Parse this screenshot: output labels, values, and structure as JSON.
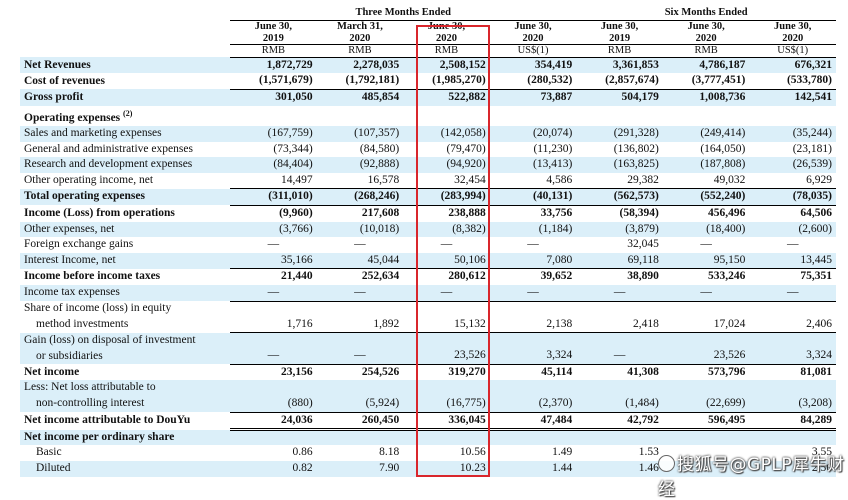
{
  "header": {
    "group_three": "Three Months Ended",
    "group_six": "Six Months Ended",
    "columns": [
      {
        "line1": "June 30,",
        "line2": "2019",
        "currency": "RMB"
      },
      {
        "line1": "March 31,",
        "line2": "2020",
        "currency": "RMB"
      },
      {
        "line1": "June 30,",
        "line2": "2020",
        "currency": "RMB"
      },
      {
        "line1": "June 30,",
        "line2": "2020",
        "currency": "US$(1)"
      },
      {
        "line1": "June 30,",
        "line2": "2019",
        "currency": "RMB"
      },
      {
        "line1": "June 30,",
        "line2": "2020",
        "currency": "RMB"
      },
      {
        "line1": "June 30,",
        "line2": "2020",
        "currency": "US$(1)"
      }
    ]
  },
  "rows": [
    {
      "label": "Net Revenues",
      "values": [
        "1,872,729",
        "2,278,035",
        "2,508,152",
        "354,419",
        "3,361,853",
        "4,786,187",
        "676,321"
      ]
    },
    {
      "label": "Cost of revenues",
      "values": [
        "(1,571,679)",
        "(1,792,181)",
        "(1,985,270)",
        "(280,532)",
        "(2,857,674)",
        "(3,777,451)",
        "(533,780)"
      ]
    },
    {
      "label": "Gross profit",
      "values": [
        "301,050",
        "485,854",
        "522,882",
        "73,887",
        "504,179",
        "1,008,736",
        "142,541"
      ]
    },
    {
      "label": "Operating expenses",
      "sup": "(2)"
    },
    {
      "label": "Sales and marketing expenses",
      "values": [
        "(167,759)",
        "(107,357)",
        "(142,058)",
        "(20,074)",
        "(291,328)",
        "(249,414)",
        "(35,244)"
      ]
    },
    {
      "label": "General and administrative expenses",
      "values": [
        "(73,344)",
        "(84,580)",
        "(79,470)",
        "(11,230)",
        "(136,802)",
        "(164,050)",
        "(23,181)"
      ]
    },
    {
      "label": "Research and development expenses",
      "values": [
        "(84,404)",
        "(92,888)",
        "(94,920)",
        "(13,413)",
        "(163,825)",
        "(187,808)",
        "(26,539)"
      ]
    },
    {
      "label": "Other operating income, net",
      "values": [
        "14,497",
        "16,578",
        "32,454",
        "4,586",
        "29,382",
        "49,032",
        "6,929"
      ]
    },
    {
      "label": "Total operating expenses",
      "values": [
        "(311,010)",
        "(268,246)",
        "(283,994)",
        "(40,131)",
        "(562,573)",
        "(552,240)",
        "(78,035)"
      ]
    },
    {
      "label": "Income (Loss) from operations",
      "values": [
        "(9,960)",
        "217,608",
        "238,888",
        "33,756",
        "(58,394)",
        "456,496",
        "64,506"
      ]
    },
    {
      "label": "Other expenses, net",
      "values": [
        "(3,766)",
        "(10,018)",
        "(8,382)",
        "(1,184)",
        "(3,879)",
        "(18,400)",
        "(2,600)"
      ]
    },
    {
      "label": "Foreign exchange gains",
      "values": [
        "—",
        "—",
        "—",
        "—",
        "32,045",
        "—",
        "—"
      ]
    },
    {
      "label": "Interest Income, net",
      "values": [
        "35,166",
        "45,044",
        "50,106",
        "7,080",
        "69,118",
        "95,150",
        "13,445"
      ]
    },
    {
      "label": "Income before income taxes",
      "values": [
        "21,440",
        "252,634",
        "280,612",
        "39,652",
        "38,890",
        "533,246",
        "75,351"
      ]
    },
    {
      "label": "Income tax expenses",
      "values": [
        "—",
        "—",
        "—",
        "—",
        "—",
        "—",
        "—"
      ]
    },
    {
      "label": "Share of income (loss) in equity"
    },
    {
      "label": "method investments",
      "values": [
        "1,716",
        "1,892",
        "15,132",
        "2,138",
        "2,418",
        "17,024",
        "2,406"
      ]
    },
    {
      "label": "Gain (loss) on disposal of investment"
    },
    {
      "label": "or subsidiaries",
      "values": [
        "—",
        "—",
        "23,526",
        "3,324",
        "—",
        "23,526",
        "3,324"
      ]
    },
    {
      "label": "Net income",
      "values": [
        "23,156",
        "254,526",
        "319,270",
        "45,114",
        "41,308",
        "573,796",
        "81,081"
      ]
    },
    {
      "label": "Less: Net loss attributable to"
    },
    {
      "label": "non-controlling interest",
      "values": [
        "(880)",
        "(5,924)",
        "(16,775)",
        "(2,370)",
        "(1,484)",
        "(22,699)",
        "(3,208)"
      ]
    },
    {
      "label": "Net income attributable to DouYu",
      "values": [
        "24,036",
        "260,450",
        "336,045",
        "47,484",
        "42,792",
        "596,495",
        "84,289"
      ]
    },
    {
      "label": "Net income per ordinary share"
    },
    {
      "label": "Basic",
      "values": [
        "0.86",
        "8.18",
        "10.56",
        "1.49",
        "1.53",
        "",
        "3.55"
      ]
    },
    {
      "label": "Diluted",
      "values": [
        "0.82",
        "7.90",
        "10.23",
        "1.44",
        "1.46",
        "",
        "2.56"
      ]
    }
  ],
  "watermark": "搜狐号@GPLP犀牛财经",
  "colors": {
    "row_shade": "#dbeff9",
    "highlight": "#d9262c"
  }
}
